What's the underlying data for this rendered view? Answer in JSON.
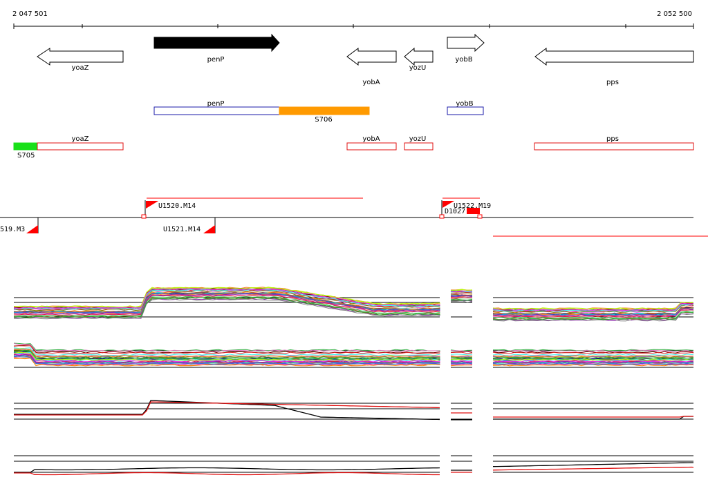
{
  "coordinates": {
    "start_label": "2 047 501",
    "end_label": "2 052 500"
  },
  "colors": {
    "gene_outline": "#000000",
    "selected_gene_fill": "#000000",
    "transcript_blue": "#1a1aa8",
    "transcript_red": "#e01010",
    "segment_orange": "#ff9a00",
    "segment_green": "#19e019",
    "probe_red": "#ff0000"
  },
  "genes": [
    {
      "name": "yoaZ",
      "strand": "-"
    },
    {
      "name": "penP",
      "strand": "+",
      "selected": true
    },
    {
      "name": "yobA",
      "strand": "-"
    },
    {
      "name": "yozU",
      "strand": "-"
    },
    {
      "name": "yobB",
      "strand": "+"
    },
    {
      "name": "pps",
      "strand": "-"
    }
  ],
  "plus_transcripts": {
    "labels": [
      "penP",
      "S706",
      "yobB"
    ]
  },
  "minus_transcripts": {
    "labels": [
      "yoaZ",
      "S705",
      "yobA",
      "yozU",
      "pps"
    ]
  },
  "upshifts": {
    "labels": [
      "U1520.M14",
      "U1522.M19",
      "D1027",
      "519.M3",
      "U1521.M14"
    ]
  },
  "expression_panels": [
    {
      "name": "multi-condition-plus"
    },
    {
      "name": "multi-condition-minus"
    },
    {
      "name": "selected-plus"
    },
    {
      "name": "selected-minus"
    }
  ]
}
